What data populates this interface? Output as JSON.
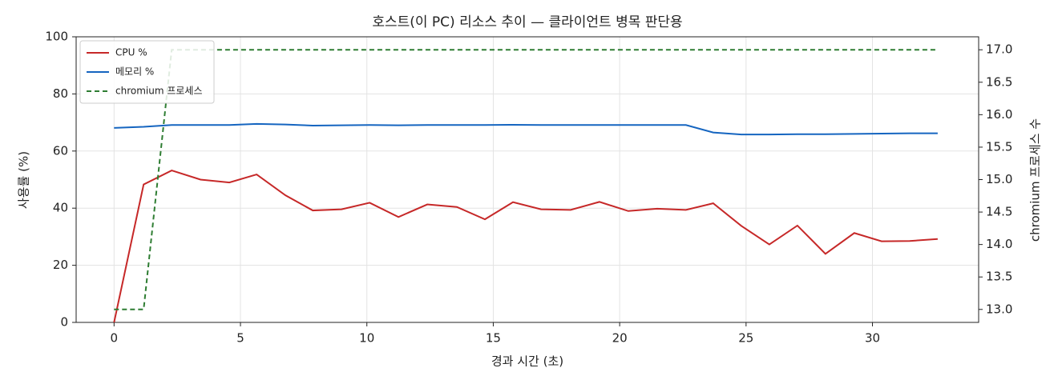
{
  "chart_data": {
    "type": "line",
    "title": "호스트(이 PC) 리소스 추이 — 클라이언트 병목 판단용",
    "x_label": "경과 시간 (초)",
    "y_label": "사용률 (%)",
    "y2_label": "chromium 프로세스 수",
    "x": [
      0,
      1.17,
      2.28,
      3.42,
      4.56,
      5.64,
      6.78,
      7.86,
      9.0,
      10.11,
      11.25,
      12.39,
      13.56,
      14.67,
      15.78,
      16.89,
      18.06,
      19.2,
      20.34,
      21.48,
      22.62,
      23.7,
      24.81,
      25.92,
      27.03,
      28.14,
      29.28,
      30.36,
      31.47,
      32.58
    ],
    "series": [
      {
        "name": "CPU %",
        "color": "#c62828",
        "style": "solid",
        "values": [
          0,
          48.3,
          53.2,
          50,
          49,
          51.8,
          44.5,
          39.2,
          39.6,
          41.9,
          36.9,
          41.3,
          40.4,
          36.1,
          42.1,
          39.6,
          39.4,
          42.2,
          39,
          39.8,
          39.4,
          41.7,
          33.8,
          27.3,
          33.9,
          24,
          31.3,
          28.4,
          28.5,
          29.2
        ]
      },
      {
        "name": "메모리 %",
        "color": "#1565c0",
        "style": "solid",
        "values": [
          68.1,
          68.5,
          69.1,
          69.1,
          69.1,
          69.5,
          69.3,
          68.9,
          69.0,
          69.1,
          69.0,
          69.1,
          69.1,
          69.1,
          69.2,
          69.1,
          69.1,
          69.1,
          69.1,
          69.1,
          69.1,
          66.5,
          65.8,
          65.8,
          65.9,
          65.9,
          66.0,
          66.1,
          66.2,
          66.2
        ]
      },
      {
        "name": "chromium 프로세스",
        "color": "#2e7d32",
        "style": "dashed",
        "axis": "y2",
        "values": [
          13,
          13,
          17,
          17,
          17,
          17,
          17,
          17,
          17,
          17,
          17,
          17,
          17,
          17,
          17,
          17,
          17,
          17,
          17,
          17,
          17,
          17,
          17,
          17,
          17,
          17,
          17,
          17,
          17,
          17
        ]
      }
    ],
    "xlim": [
      -1.5,
      34.2
    ],
    "xticks": [
      0,
      5,
      10,
      15,
      20,
      25,
      30
    ],
    "ylim": [
      0,
      100
    ],
    "yticks": [
      0,
      20,
      40,
      60,
      80,
      100
    ],
    "y2lim": [
      12.8,
      17.2
    ],
    "y2ticks": [
      {
        "value": 13,
        "label": "13.0"
      },
      {
        "value": 13.5,
        "label": "13.5"
      },
      {
        "value": 14,
        "label": "14.0"
      },
      {
        "value": 14.5,
        "label": "14.5"
      },
      {
        "value": 15,
        "label": "15.0"
      },
      {
        "value": 15.5,
        "label": "15.5"
      },
      {
        "value": 16,
        "label": "16.0"
      },
      {
        "value": 16.5,
        "label": "16.5"
      },
      {
        "value": 17,
        "label": "17.0"
      }
    ],
    "grid": true,
    "legend": "upper-left"
  }
}
